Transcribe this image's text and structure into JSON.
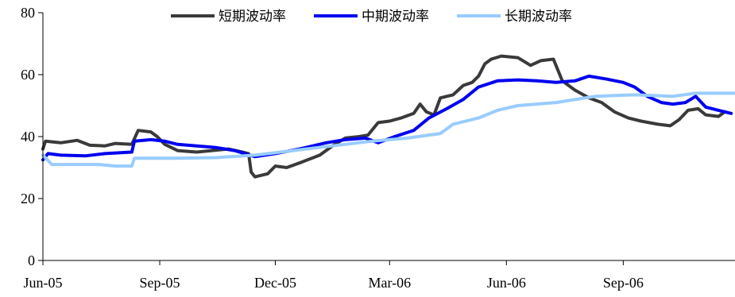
{
  "chart_data": {
    "type": "line",
    "title": "",
    "xlabel": "",
    "ylabel": "",
    "ylim": [
      0,
      80
    ],
    "yticks": [
      0,
      20,
      40,
      60,
      80
    ],
    "xlim": [
      "2005-06-01",
      "2006-11-28"
    ],
    "xticks": [
      {
        "date": "2005-06-01",
        "label": "Jun-05"
      },
      {
        "date": "2005-09-01",
        "label": "Sep-05"
      },
      {
        "date": "2005-12-01",
        "label": "Dec-05"
      },
      {
        "date": "2006-03-01",
        "label": "Mar-06"
      },
      {
        "date": "2006-06-01",
        "label": "Jun-06"
      },
      {
        "date": "2006-09-01",
        "label": "Sep-06"
      }
    ],
    "grid": false,
    "legend_position": "top",
    "series": [
      {
        "name": "短期波动率",
        "color": "#3a3a3a",
        "points": [
          [
            "2005-06-01",
            36
          ],
          [
            "2005-06-03",
            38.5
          ],
          [
            "2005-06-15",
            38
          ],
          [
            "2005-06-28",
            38.8
          ],
          [
            "2005-07-08",
            37.2
          ],
          [
            "2005-07-20",
            37
          ],
          [
            "2005-07-28",
            37.8
          ],
          [
            "2005-08-10",
            37.5
          ],
          [
            "2005-08-15",
            42
          ],
          [
            "2005-08-25",
            41.5
          ],
          [
            "2005-08-30",
            40
          ],
          [
            "2005-09-05",
            37.5
          ],
          [
            "2005-09-15",
            35.5
          ],
          [
            "2005-09-30",
            35
          ],
          [
            "2005-10-12",
            35.5
          ],
          [
            "2005-10-25",
            36
          ],
          [
            "2005-11-05",
            35
          ],
          [
            "2005-11-10",
            34.5
          ],
          [
            "2005-11-12",
            28.5
          ],
          [
            "2005-11-15",
            27
          ],
          [
            "2005-11-25",
            28
          ],
          [
            "2005-12-01",
            30.5
          ],
          [
            "2005-12-10",
            30
          ],
          [
            "2005-12-20",
            31.5
          ],
          [
            "2006-01-05",
            34
          ],
          [
            "2006-01-15",
            37
          ],
          [
            "2006-01-25",
            39.5
          ],
          [
            "2006-02-05",
            40
          ],
          [
            "2006-02-12",
            40.5
          ],
          [
            "2006-02-20",
            44.5
          ],
          [
            "2006-03-01",
            45
          ],
          [
            "2006-03-10",
            46
          ],
          [
            "2006-03-20",
            47.5
          ],
          [
            "2006-03-25",
            50.5
          ],
          [
            "2006-03-30",
            48
          ],
          [
            "2006-04-05",
            47
          ],
          [
            "2006-04-10",
            52.5
          ],
          [
            "2006-04-20",
            53.5
          ],
          [
            "2006-04-28",
            56.5
          ],
          [
            "2006-05-05",
            57.5
          ],
          [
            "2006-05-10",
            59.5
          ],
          [
            "2006-05-15",
            63.5
          ],
          [
            "2006-05-20",
            65
          ],
          [
            "2006-05-28",
            66
          ],
          [
            "2006-06-10",
            65.5
          ],
          [
            "2006-06-20",
            63
          ],
          [
            "2006-06-28",
            64.5
          ],
          [
            "2006-07-08",
            65
          ],
          [
            "2006-07-15",
            58
          ],
          [
            "2006-07-25",
            55
          ],
          [
            "2006-08-05",
            52.5
          ],
          [
            "2006-08-15",
            51
          ],
          [
            "2006-08-25",
            48
          ],
          [
            "2006-09-05",
            46
          ],
          [
            "2006-09-15",
            45
          ],
          [
            "2006-09-28",
            44
          ],
          [
            "2006-10-08",
            43.5
          ],
          [
            "2006-10-15",
            45.5
          ],
          [
            "2006-10-22",
            48.5
          ],
          [
            "2006-10-30",
            49
          ],
          [
            "2006-11-05",
            47
          ],
          [
            "2006-11-15",
            46.5
          ],
          [
            "2006-11-20",
            48
          ]
        ]
      },
      {
        "name": "中期波动率",
        "color": "#0000ee",
        "points": [
          [
            "2005-06-01",
            32.5
          ],
          [
            "2005-06-05",
            34.5
          ],
          [
            "2005-06-15",
            34
          ],
          [
            "2005-07-05",
            33.8
          ],
          [
            "2005-07-20",
            34.5
          ],
          [
            "2005-08-10",
            35
          ],
          [
            "2005-08-12",
            38.5
          ],
          [
            "2005-08-25",
            39
          ],
          [
            "2005-09-05",
            38.5
          ],
          [
            "2005-09-15",
            37.5
          ],
          [
            "2005-09-30",
            37
          ],
          [
            "2005-10-15",
            36.5
          ],
          [
            "2005-10-30",
            35.5
          ],
          [
            "2005-11-15",
            33.5
          ],
          [
            "2005-12-01",
            34.5
          ],
          [
            "2005-12-20",
            36
          ],
          [
            "2006-01-10",
            38
          ],
          [
            "2006-01-25",
            39
          ],
          [
            "2006-02-10",
            39.5
          ],
          [
            "2006-02-20",
            38
          ],
          [
            "2006-03-05",
            40
          ],
          [
            "2006-03-20",
            42
          ],
          [
            "2006-04-01",
            46
          ],
          [
            "2006-04-15",
            49
          ],
          [
            "2006-04-28",
            52
          ],
          [
            "2006-05-10",
            56
          ],
          [
            "2006-05-25",
            58
          ],
          [
            "2006-06-10",
            58.3
          ],
          [
            "2006-06-25",
            58
          ],
          [
            "2006-07-10",
            57.5
          ],
          [
            "2006-07-25",
            58
          ],
          [
            "2006-08-05",
            59.5
          ],
          [
            "2006-08-20",
            58.5
          ],
          [
            "2006-09-01",
            57.5
          ],
          [
            "2006-09-10",
            56
          ],
          [
            "2006-09-20",
            53
          ],
          [
            "2006-10-01",
            51
          ],
          [
            "2006-10-10",
            50.5
          ],
          [
            "2006-10-20",
            51
          ],
          [
            "2006-10-28",
            53
          ],
          [
            "2006-11-05",
            49.5
          ],
          [
            "2006-11-15",
            48.5
          ],
          [
            "2006-11-25",
            47.5
          ]
        ]
      },
      {
        "name": "长期波动率",
        "color": "#99ccff",
        "points": [
          [
            "2005-06-01",
            34
          ],
          [
            "2005-06-08",
            31
          ],
          [
            "2005-07-15",
            31
          ],
          [
            "2005-07-28",
            30.5
          ],
          [
            "2005-08-10",
            30.5
          ],
          [
            "2005-08-12",
            33
          ],
          [
            "2005-09-15",
            33
          ],
          [
            "2005-10-15",
            33.2
          ],
          [
            "2005-11-15",
            34
          ],
          [
            "2005-12-15",
            35.5
          ],
          [
            "2006-01-15",
            37
          ],
          [
            "2006-02-15",
            38.5
          ],
          [
            "2006-03-15",
            39.5
          ],
          [
            "2006-04-10",
            41
          ],
          [
            "2006-04-20",
            44
          ],
          [
            "2006-05-10",
            46
          ],
          [
            "2006-05-25",
            48.5
          ],
          [
            "2006-06-10",
            50
          ],
          [
            "2006-07-10",
            51
          ],
          [
            "2006-08-10",
            53
          ],
          [
            "2006-09-10",
            53.5
          ],
          [
            "2006-10-10",
            53
          ],
          [
            "2006-10-28",
            54
          ],
          [
            "2006-11-28",
            54
          ]
        ]
      }
    ]
  }
}
